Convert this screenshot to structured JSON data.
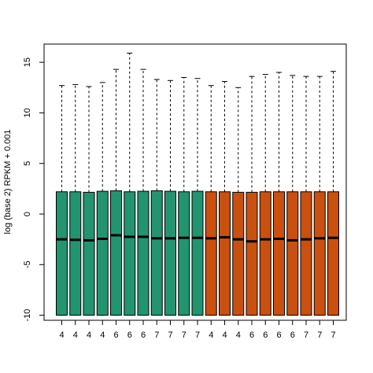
{
  "chart_data": {
    "type": "boxplot",
    "title": "",
    "xlabel": "",
    "ylabel": "log (base 2) RPKM + 0.001",
    "ylim": [
      -10.5,
      16.8
    ],
    "yticks": [
      -10,
      -5,
      0,
      5,
      10,
      15
    ],
    "categories": [
      "4",
      "4",
      "4",
      "4",
      "6",
      "6",
      "6",
      "7",
      "7",
      "7",
      "7",
      "4",
      "4",
      "4",
      "6",
      "6",
      "6",
      "6",
      "7",
      "7",
      "7"
    ],
    "groups": [
      {
        "color": "#229470",
        "count": 11
      },
      {
        "color": "#c9500f",
        "count": 10
      }
    ],
    "boxes": [
      {
        "min": -10,
        "q1": -10,
        "median": -2.5,
        "q3": 2.2,
        "max": 12.7
      },
      {
        "min": -10,
        "q1": -10,
        "median": -2.55,
        "q3": 2.2,
        "max": 12.8
      },
      {
        "min": -10,
        "q1": -10,
        "median": -2.6,
        "q3": 2.15,
        "max": 12.6
      },
      {
        "min": -10,
        "q1": -10,
        "median": -2.45,
        "q3": 2.25,
        "max": 13.0
      },
      {
        "min": -10,
        "q1": -10,
        "median": -2.1,
        "q3": 2.3,
        "max": 14.3
      },
      {
        "min": -10,
        "q1": -10,
        "median": -2.25,
        "q3": 2.2,
        "max": 15.9
      },
      {
        "min": -10,
        "q1": -10,
        "median": -2.25,
        "q3": 2.25,
        "max": 14.3
      },
      {
        "min": -10,
        "q1": -10,
        "median": -2.4,
        "q3": 2.3,
        "max": 13.3
      },
      {
        "min": -10,
        "q1": -10,
        "median": -2.4,
        "q3": 2.25,
        "max": 13.2
      },
      {
        "min": -10,
        "q1": -10,
        "median": -2.35,
        "q3": 2.2,
        "max": 13.5
      },
      {
        "min": -10,
        "q1": -10,
        "median": -2.35,
        "q3": 2.25,
        "max": 13.4
      },
      {
        "min": -10,
        "q1": -10,
        "median": -2.4,
        "q3": 2.2,
        "max": 12.7
      },
      {
        "min": -10,
        "q1": -10,
        "median": -2.3,
        "q3": 2.2,
        "max": 13.1
      },
      {
        "min": -10,
        "q1": -10,
        "median": -2.5,
        "q3": 2.15,
        "max": 12.5
      },
      {
        "min": -10,
        "q1": -10,
        "median": -2.7,
        "q3": 2.15,
        "max": 13.6
      },
      {
        "min": -10,
        "q1": -10,
        "median": -2.5,
        "q3": 2.2,
        "max": 13.8
      },
      {
        "min": -10,
        "q1": -10,
        "median": -2.45,
        "q3": 2.2,
        "max": 14.0
      },
      {
        "min": -10,
        "q1": -10,
        "median": -2.6,
        "q3": 2.2,
        "max": 13.7
      },
      {
        "min": -10,
        "q1": -10,
        "median": -2.5,
        "q3": 2.2,
        "max": 13.6
      },
      {
        "min": -10,
        "q1": -10,
        "median": -2.4,
        "q3": 2.2,
        "max": 13.6
      },
      {
        "min": -10,
        "q1": -10,
        "median": -2.35,
        "q3": 2.2,
        "max": 14.1
      }
    ],
    "grid": false,
    "legend": "none"
  }
}
